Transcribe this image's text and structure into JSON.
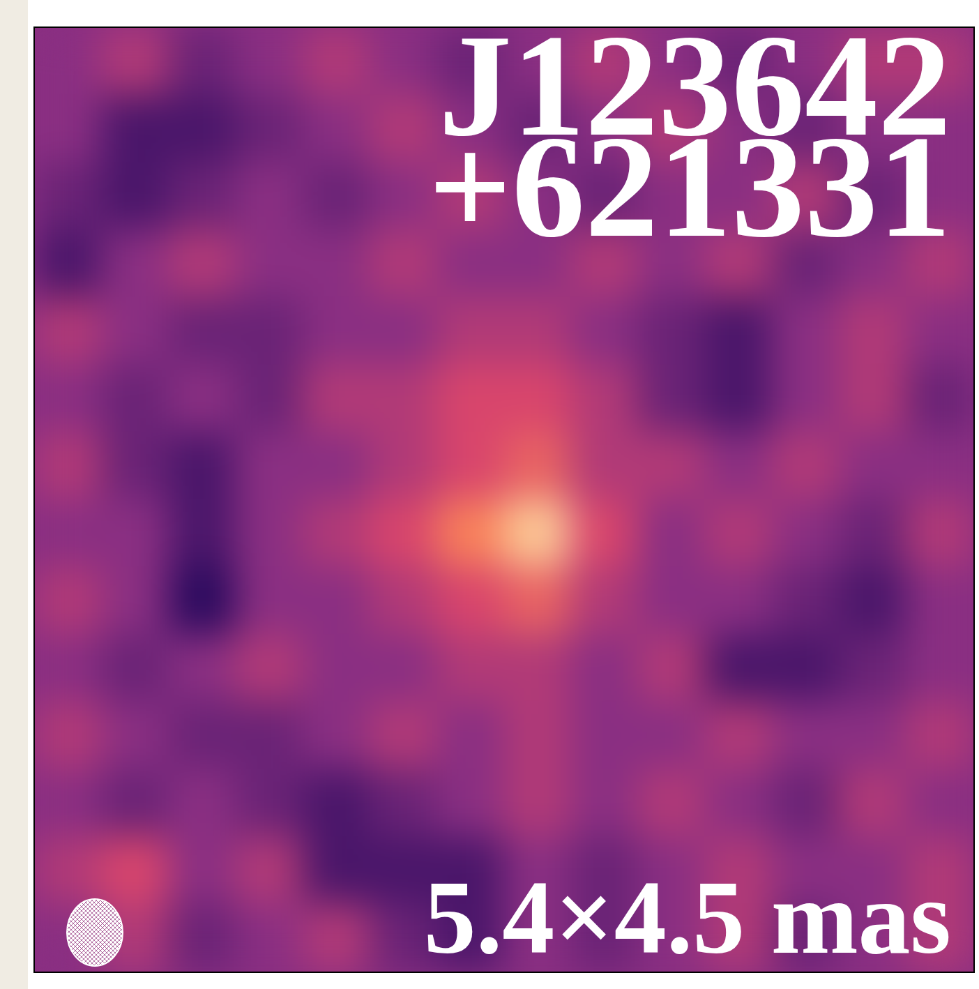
{
  "chart_data": {
    "type": "heatmap",
    "title": "J123642 +621331",
    "annotations": [
      "5.4×4.5 mas"
    ],
    "tick_labels": false,
    "color_range": [
      -3,
      7
    ],
    "cells": [
      [
        0,
        1,
        -1,
        0,
        1,
        0,
        -1,
        0,
        1,
        0,
        -1,
        0,
        1,
        1
      ],
      [
        0,
        -2,
        -2,
        -1,
        0,
        1,
        0,
        -1,
        0,
        1,
        0,
        -1,
        0,
        0
      ],
      [
        -1,
        -2,
        -1,
        0,
        -1,
        0,
        1,
        0,
        -1,
        0,
        0,
        1,
        -1,
        0
      ],
      [
        -2,
        0,
        1,
        0,
        0,
        1,
        0,
        0,
        1,
        0,
        1,
        -1,
        0,
        1
      ],
      [
        1,
        0,
        -1,
        -1,
        0,
        0,
        1,
        1,
        0,
        -1,
        -2,
        0,
        1,
        0
      ],
      [
        0,
        -1,
        0,
        -1,
        1,
        1,
        2,
        2,
        1,
        -1,
        -2,
        0,
        1,
        -1
      ],
      [
        1,
        -1,
        -2,
        0,
        0,
        1,
        2,
        3,
        1,
        1,
        0,
        1,
        0,
        0
      ],
      [
        0,
        0,
        -2,
        0,
        1,
        2,
        4,
        6,
        2,
        0,
        1,
        0,
        -1,
        1
      ],
      [
        1,
        0,
        -3,
        0,
        0,
        1,
        2,
        3,
        1,
        0,
        0,
        -1,
        -2,
        0
      ],
      [
        0,
        -1,
        0,
        1,
        0,
        0,
        1,
        1,
        0,
        1,
        -2,
        -2,
        -1,
        0
      ],
      [
        1,
        0,
        -1,
        -1,
        0,
        1,
        0,
        1,
        0,
        0,
        1,
        0,
        0,
        1
      ],
      [
        0,
        -1,
        0,
        -1,
        -2,
        -1,
        0,
        1,
        0,
        1,
        0,
        -1,
        1,
        0
      ],
      [
        1,
        2,
        0,
        1,
        -2,
        -2,
        -2,
        0,
        -1,
        0,
        1,
        0,
        0,
        1
      ],
      [
        0,
        1,
        -1,
        0,
        1,
        -1,
        -2,
        0,
        -1,
        0,
        1,
        -1,
        0,
        1
      ]
    ]
  }
}
